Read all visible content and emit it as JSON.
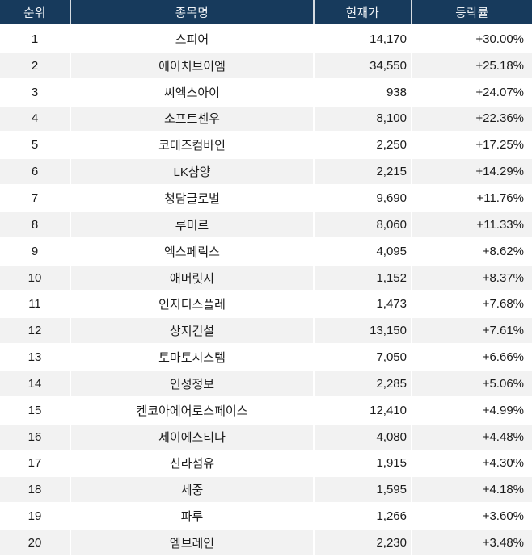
{
  "colors": {
    "header_bg": "#173a5c",
    "header_text": "#eef1f5",
    "row_bg": "#ffffff",
    "row_alt_bg": "#f2f2f2",
    "body_text": "#1b1b1b",
    "divider": "#ffffff"
  },
  "chart_data": {
    "type": "table",
    "columns": [
      "순위",
      "종목명",
      "현재가",
      "등락률"
    ],
    "rows": [
      {
        "rank": "1",
        "name": "스피어",
        "price": "14,170",
        "change": "+30.00%"
      },
      {
        "rank": "2",
        "name": "에이치브이엠",
        "price": "34,550",
        "change": "+25.18%"
      },
      {
        "rank": "3",
        "name": "씨엑스아이",
        "price": "938",
        "change": "+24.07%"
      },
      {
        "rank": "4",
        "name": "소프트센우",
        "price": "8,100",
        "change": "+22.36%"
      },
      {
        "rank": "5",
        "name": "코데즈컴바인",
        "price": "2,250",
        "change": "+17.25%"
      },
      {
        "rank": "6",
        "name": "LK삼양",
        "price": "2,215",
        "change": "+14.29%"
      },
      {
        "rank": "7",
        "name": "청담글로벌",
        "price": "9,690",
        "change": "+11.76%"
      },
      {
        "rank": "8",
        "name": "루미르",
        "price": "8,060",
        "change": "+11.33%"
      },
      {
        "rank": "9",
        "name": "엑스페릭스",
        "price": "4,095",
        "change": "+8.62%"
      },
      {
        "rank": "10",
        "name": "애머릿지",
        "price": "1,152",
        "change": "+8.37%"
      },
      {
        "rank": "11",
        "name": "인지디스플레",
        "price": "1,473",
        "change": "+7.68%"
      },
      {
        "rank": "12",
        "name": "상지건설",
        "price": "13,150",
        "change": "+7.61%"
      },
      {
        "rank": "13",
        "name": "토마토시스템",
        "price": "7,050",
        "change": "+6.66%"
      },
      {
        "rank": "14",
        "name": "인성정보",
        "price": "2,285",
        "change": "+5.06%"
      },
      {
        "rank": "15",
        "name": "켄코아에어로스페이스",
        "price": "12,410",
        "change": "+4.99%"
      },
      {
        "rank": "16",
        "name": "제이에스티나",
        "price": "4,080",
        "change": "+4.48%"
      },
      {
        "rank": "17",
        "name": "신라섬유",
        "price": "1,915",
        "change": "+4.30%"
      },
      {
        "rank": "18",
        "name": "세중",
        "price": "1,595",
        "change": "+4.18%"
      },
      {
        "rank": "19",
        "name": "파루",
        "price": "1,266",
        "change": "+3.60%"
      },
      {
        "rank": "20",
        "name": "엠브레인",
        "price": "2,230",
        "change": "+3.48%"
      }
    ]
  }
}
